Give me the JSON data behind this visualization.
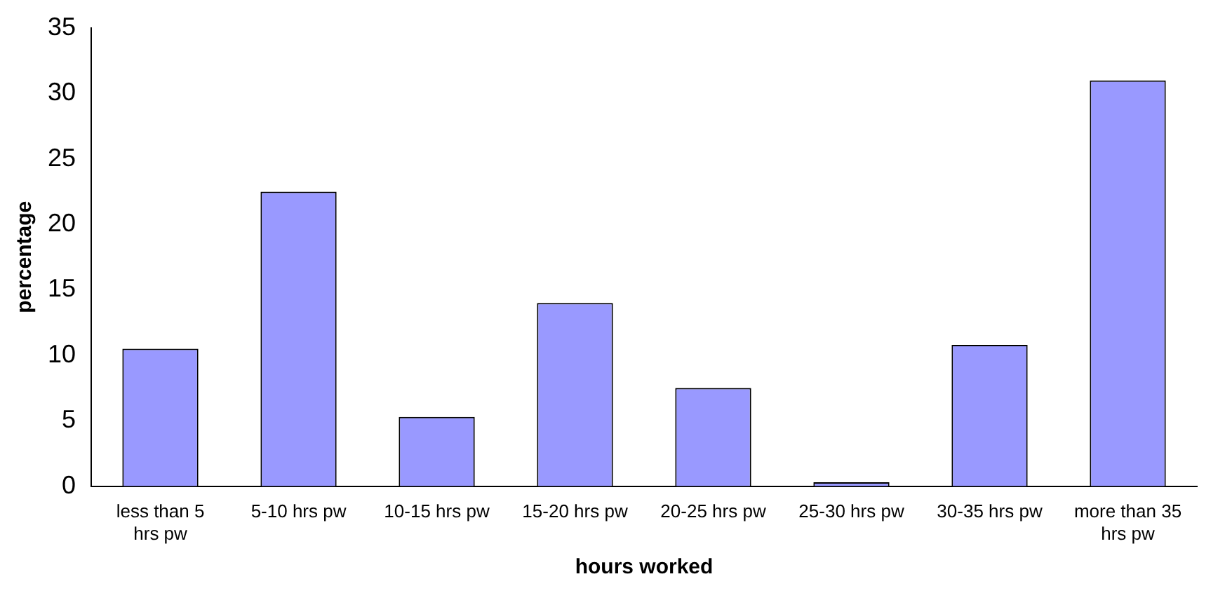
{
  "chart_data": {
    "type": "bar",
    "xlabel": "hours worked",
    "ylabel": "percentage",
    "categories": [
      "less than 5 hrs pw",
      "5-10 hrs pw",
      "10-15 hrs pw",
      "15-20 hrs pw",
      "20-25 hrs pw",
      "25-30 hrs pw",
      "30-35 hrs pw",
      "more than 35 hrs pw"
    ],
    "values": [
      10.5,
      22.5,
      5.3,
      14,
      7.5,
      0.3,
      10.8,
      31
    ],
    "color": "#9999ff",
    "ylim": [
      0,
      35
    ],
    "yticks": [
      0,
      5,
      10,
      15,
      20,
      25,
      30,
      35
    ],
    "grid": false,
    "legend": false
  }
}
